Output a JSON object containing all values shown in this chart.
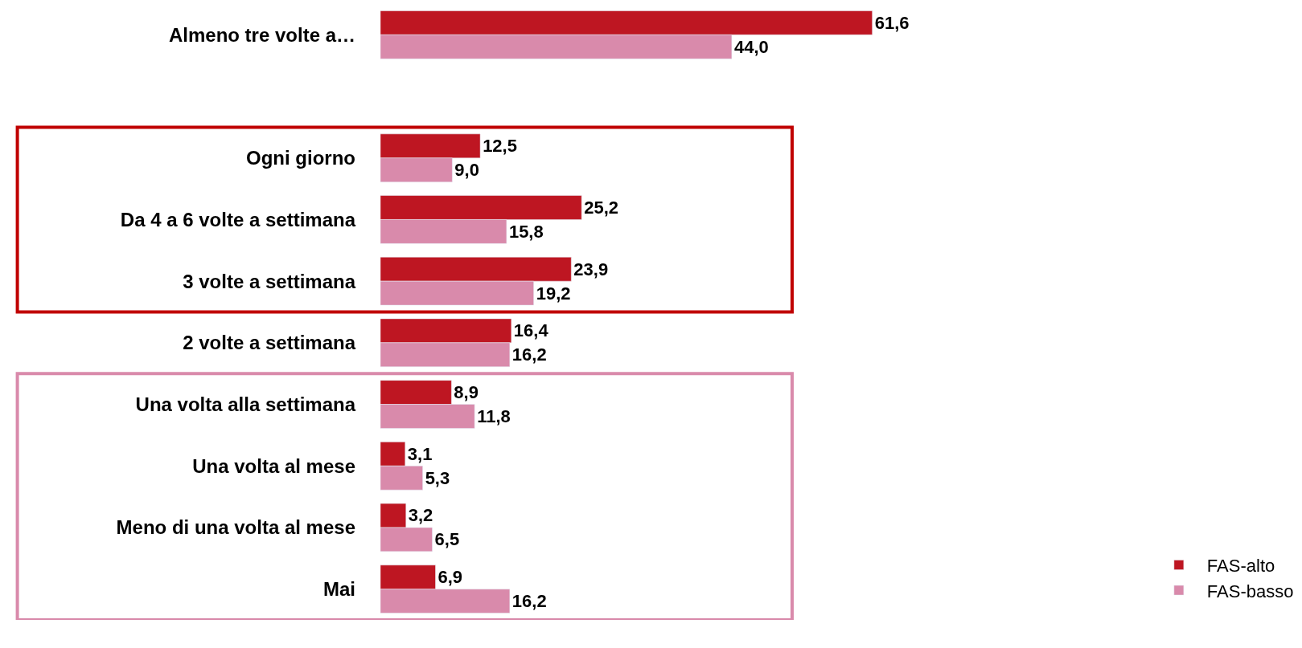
{
  "chart_data": {
    "type": "bar",
    "orientation": "horizontal",
    "categories": [
      "Almeno tre volte a…",
      null,
      "Ogni giorno",
      "Da 4 a 6 volte a settimana",
      "3 volte a settimana",
      "2 volte a settimana",
      "Una volta alla settimana",
      "Una volta al mese",
      "Meno di una volta al mese",
      "Mai"
    ],
    "series": [
      {
        "name": "FAS-alto",
        "color": "#be1622",
        "values": [
          61.6,
          null,
          12.5,
          25.2,
          23.9,
          16.4,
          8.9,
          3.1,
          3.2,
          6.9
        ],
        "value_labels": [
          "61,6",
          null,
          "12,5",
          "25,2",
          "23,9",
          "16,4",
          "8,9",
          "3,1",
          "3,2",
          "6,9"
        ]
      },
      {
        "name": "FAS-basso",
        "color": "#d98aab",
        "values": [
          44.0,
          null,
          9.0,
          15.8,
          19.2,
          16.2,
          11.8,
          5.3,
          6.5,
          16.2
        ],
        "value_labels": [
          "44,0",
          null,
          "9,0",
          "15,8",
          "19,2",
          "16,2",
          "11,8",
          "5,3",
          "6,5",
          "16,2"
        ]
      }
    ],
    "legend": "bottom right"
  }
}
